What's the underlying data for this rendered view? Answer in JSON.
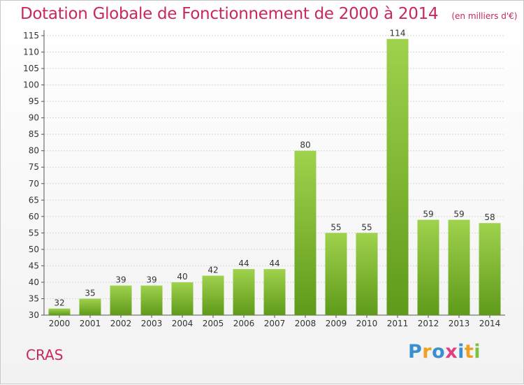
{
  "chart_data": {
    "type": "bar",
    "title": "Dotation Globale de Fonctionnement de 2000 à 2014",
    "subtitle": "(en milliers d'€)",
    "categories": [
      "2000",
      "2001",
      "2002",
      "2003",
      "2004",
      "2005",
      "2006",
      "2007",
      "2008",
      "2009",
      "2010",
      "2011",
      "2012",
      "2013",
      "2014"
    ],
    "values": [
      32,
      35,
      39,
      39,
      40,
      42,
      44,
      44,
      80,
      55,
      55,
      114,
      59,
      59,
      58
    ],
    "ylim": [
      30,
      115
    ],
    "yticks": [
      30,
      35,
      40,
      45,
      50,
      55,
      60,
      65,
      70,
      75,
      80,
      85,
      90,
      95,
      100,
      105,
      110,
      115
    ],
    "grid": true,
    "bar_color": "#7fbf2f"
  },
  "commune": "CRAS",
  "logo": {
    "letters": [
      {
        "ch": "P",
        "color": "#3a8fd0"
      },
      {
        "ch": "r",
        "color": "#f0a020"
      },
      {
        "ch": "o",
        "color": "#3a8fd0"
      },
      {
        "ch": "x",
        "color": "#e04080"
      },
      {
        "ch": "i",
        "color": "#3a8fd0"
      },
      {
        "ch": "t",
        "color": "#f0a020"
      },
      {
        "ch": "i",
        "color": "#7cc242"
      }
    ]
  }
}
